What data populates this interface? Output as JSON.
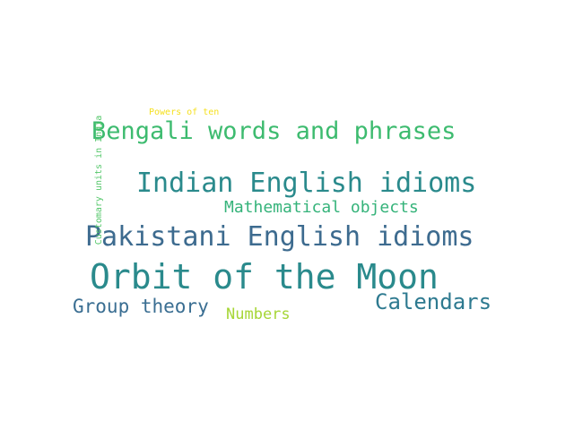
{
  "words": [
    {
      "id": "orbit",
      "text": "Orbit of the Moon",
      "color": "#2a8a8c"
    },
    {
      "id": "pakistani",
      "text": "Pakistani English idioms",
      "color": "#3d6b8f"
    },
    {
      "id": "indian",
      "text": "Indian English idioms",
      "color": "#2a8a8c"
    },
    {
      "id": "bengali",
      "text": "Bengali words and phrases",
      "color": "#3dbb6f"
    },
    {
      "id": "calendars",
      "text": "Calendars",
      "color": "#2e7a90"
    },
    {
      "id": "group",
      "text": "Group theory",
      "color": "#3a6e92"
    },
    {
      "id": "math",
      "text": "Mathematical objects",
      "color": "#35b37a"
    },
    {
      "id": "numbers",
      "text": "Numbers",
      "color": "#a6d636"
    },
    {
      "id": "powers",
      "text": "Powers of ten",
      "color": "#f5e020"
    },
    {
      "id": "customary",
      "text": "Customary units in India",
      "color": "#54c76a"
    }
  ]
}
